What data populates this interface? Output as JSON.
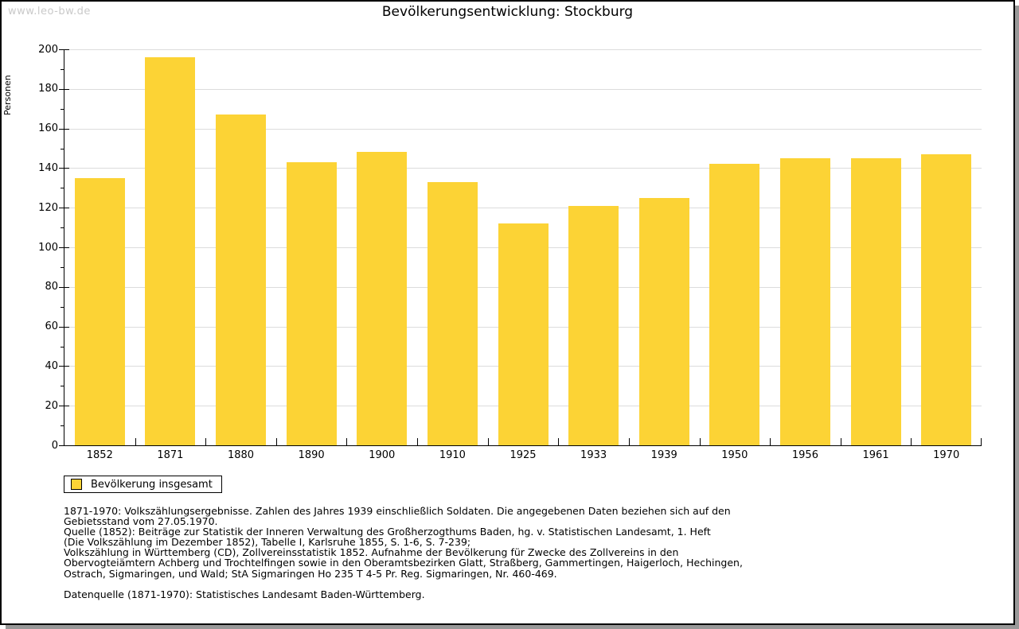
{
  "page": {
    "watermark": "www.leo-bw.de"
  },
  "chart_data": {
    "type": "bar",
    "title": "Bevölkerungsentwicklung: Stockburg",
    "xlabel": "",
    "ylabel": "Personen",
    "categories": [
      "1852",
      "1871",
      "1880",
      "1890",
      "1900",
      "1910",
      "1925",
      "1933",
      "1939",
      "1950",
      "1956",
      "1961",
      "1970"
    ],
    "values": [
      135,
      196,
      167,
      143,
      148,
      133,
      112,
      121,
      125,
      142,
      145,
      145,
      147
    ],
    "series_name": "Bevölkerung insgesamt",
    "ylim": [
      0,
      200
    ],
    "ytick_step": 20,
    "ytick_minor_step": 10,
    "grid": true,
    "legend_position": "bottom-left",
    "bar_color": "#FCD335",
    "grid_color": "#DCDCDC",
    "axis_color": "#000000"
  },
  "legend": {
    "label": "Bevölkerung insgesamt"
  },
  "footnotes": {
    "lines": [
      "1871-1970: Volkszählungsergebnisse. Zahlen des Jahres 1939 einschließlich Soldaten. Die angegebenen Daten beziehen sich auf den",
      "Gebietsstand vom 27.05.1970.",
      "Quelle (1852): Beiträge zur Statistik der Inneren Verwaltung des Großherzogthums Baden, hg. v. Statistischen Landesamt, 1. Heft",
      "(Die Volkszählung im Dezember 1852), Tabelle I, Karlsruhe 1855, S. 1-6, S. 7-239;",
      "Volkszählung in Württemberg (CD), Zollvereinsstatistik 1852. Aufnahme der Bevölkerung für Zwecke des Zollvereins in den",
      "Obervogteiämtern Achberg und Trochtelfingen sowie in den Oberamtsbezirken Glatt, Straßberg, Gammertingen, Haigerloch, Hechingen,",
      "Ostrach, Sigmaringen, und Wald; StA Sigmaringen Ho 235 T 4-5 Pr. Reg. Sigmaringen, Nr. 460-469.",
      "",
      "Datenquelle (1871-1970): Statistisches Landesamt Baden-Württemberg."
    ]
  }
}
